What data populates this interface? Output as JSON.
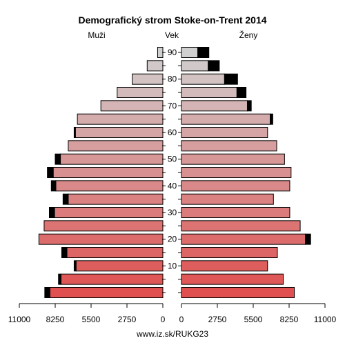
{
  "chart_data": {
    "type": "bar",
    "title": "Demografický strom Stoke-on-Trent 2014",
    "left_label": "Muži",
    "center_label": "Vek",
    "right_label": "Ženy",
    "footer": "www.iz.sk/RUKG23",
    "xlim": [
      0,
      11000
    ],
    "x_ticks_left": [
      "11000",
      "8250",
      "5500",
      "2750",
      "0"
    ],
    "x_ticks_right": [
      "0",
      "2750",
      "5500",
      "8250",
      "11000"
    ],
    "x_tick_values": [
      11000,
      8250,
      5500,
      2750,
      0
    ],
    "age_ticks": [
      "10",
      "20",
      "30",
      "40",
      "50",
      "60",
      "70",
      "80",
      "90"
    ],
    "age_groups": [
      "0-4",
      "5-9",
      "10-14",
      "15-19",
      "20-24",
      "25-29",
      "30-34",
      "35-39",
      "40-44",
      "45-49",
      "50-54",
      "55-59",
      "60-64",
      "65-69",
      "70-74",
      "75-79",
      "80-84",
      "85-89",
      "90+"
    ],
    "series": [
      {
        "name": "Muži",
        "values": [
          8650,
          7800,
          6650,
          7350,
          9500,
          9100,
          8300,
          7250,
          8200,
          8400,
          7850,
          7250,
          6700,
          6550,
          4750,
          3500,
          2350,
          1200,
          400
        ],
        "excess": [
          400,
          200,
          150,
          400,
          0,
          0,
          400,
          400,
          350,
          450,
          400,
          0,
          100,
          0,
          0,
          0,
          0,
          0,
          0
        ]
      },
      {
        "name": "Ženy",
        "values": [
          8650,
          7800,
          6600,
          7350,
          9500,
          9100,
          8300,
          7050,
          8300,
          8400,
          7900,
          7300,
          6600,
          6800,
          5050,
          4250,
          3300,
          2050,
          1250
        ],
        "excess": [
          0,
          0,
          0,
          0,
          400,
          0,
          0,
          0,
          0,
          0,
          0,
          0,
          0,
          200,
          300,
          700,
          1000,
          850,
          850
        ]
      }
    ],
    "colors": {
      "excess": "#000000",
      "young": "#e05050",
      "old": "#d0d0d0"
    }
  }
}
